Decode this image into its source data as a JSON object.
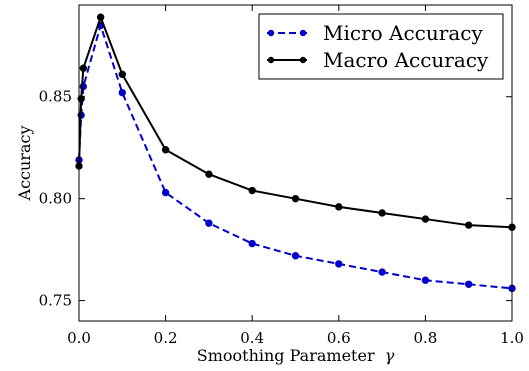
{
  "chart_data": {
    "type": "line",
    "title": "",
    "xlabel": "Smoothing Parameter",
    "xlabel_symbol": "γ",
    "ylabel": "Accuracy",
    "xlim": [
      0.0,
      1.0
    ],
    "ylim": [
      0.74,
      0.895
    ],
    "grid": false,
    "legend_position": "top-right",
    "x_ticks": [
      {
        "value": 0.0,
        "label": "0.0"
      },
      {
        "value": 0.2,
        "label": "0.2"
      },
      {
        "value": 0.4,
        "label": "0.4"
      },
      {
        "value": 0.6,
        "label": "0.6"
      },
      {
        "value": 0.8,
        "label": "0.8"
      },
      {
        "value": 1.0,
        "label": "1.0"
      }
    ],
    "y_ticks": [
      {
        "value": 0.75,
        "label": "0.75"
      },
      {
        "value": 0.8,
        "label": "0.80"
      },
      {
        "value": 0.85,
        "label": "0.85"
      }
    ],
    "series": [
      {
        "name": "Micro Accuracy",
        "color": "#0000cc",
        "line_style": "dashed",
        "marker": "circle",
        "x": [
          0.0,
          0.005,
          0.01,
          0.05,
          0.1,
          0.2,
          0.3,
          0.4,
          0.5,
          0.6,
          0.7,
          0.8,
          0.9,
          1.0
        ],
        "y": [
          0.819,
          0.841,
          0.855,
          0.885,
          0.852,
          0.803,
          0.788,
          0.778,
          0.772,
          0.768,
          0.764,
          0.76,
          0.758,
          0.756
        ]
      },
      {
        "name": "Macro Accuracy",
        "color": "#000000",
        "line_style": "solid",
        "marker": "circle",
        "x": [
          0.0,
          0.005,
          0.01,
          0.05,
          0.1,
          0.2,
          0.3,
          0.4,
          0.5,
          0.6,
          0.7,
          0.8,
          0.9,
          1.0
        ],
        "y": [
          0.816,
          0.849,
          0.864,
          0.889,
          0.861,
          0.824,
          0.812,
          0.804,
          0.8,
          0.796,
          0.793,
          0.79,
          0.787,
          0.786
        ]
      }
    ]
  }
}
